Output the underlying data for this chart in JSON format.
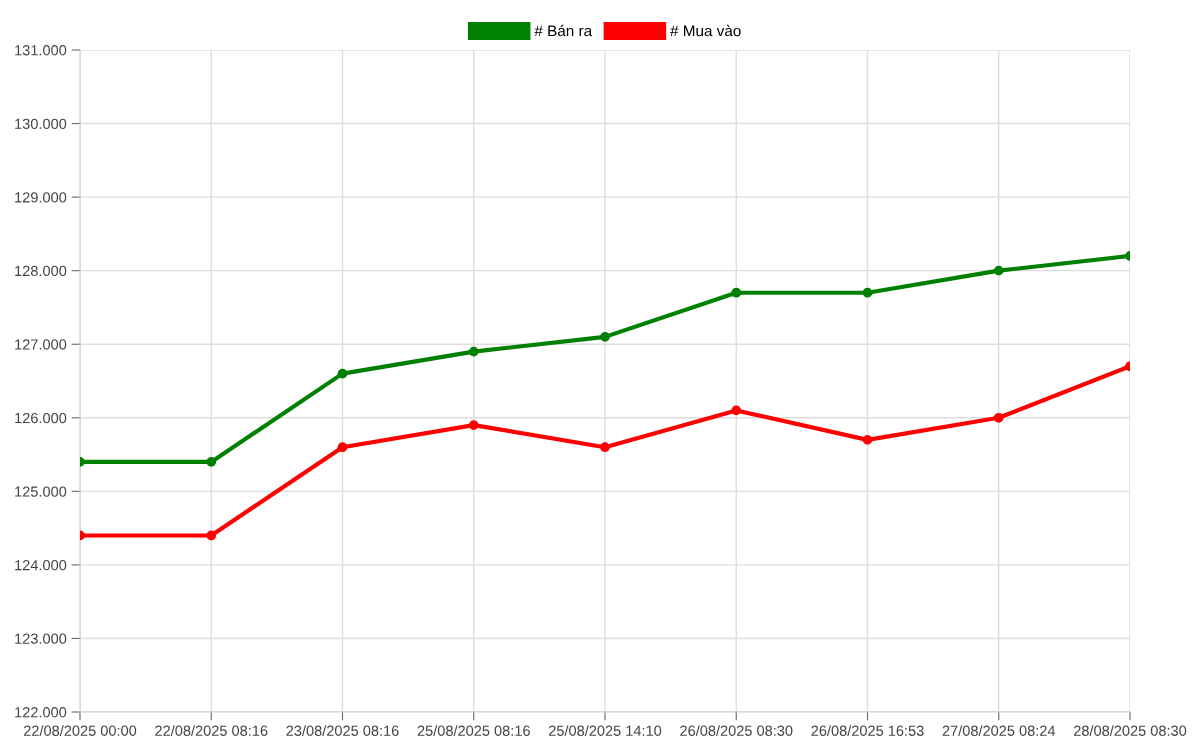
{
  "chart_data": {
    "type": "line",
    "categories": [
      "22/08/2025 00:00",
      "22/08/2025 08:16",
      "23/08/2025 08:16",
      "25/08/2025 08:16",
      "25/08/2025 14:10",
      "26/08/2025 08:30",
      "26/08/2025 16:53",
      "27/08/2025 08:24",
      "28/08/2025 08:30"
    ],
    "series": [
      {
        "name": "# Bán ra",
        "color": "#008000",
        "values": [
          125400,
          125400,
          126600,
          126900,
          127100,
          127700,
          127700,
          128000,
          128200
        ]
      },
      {
        "name": "# Mua vào",
        "color": "#ff0000",
        "values": [
          124400,
          124400,
          125600,
          125900,
          125600,
          126100,
          125700,
          126000,
          126700
        ]
      }
    ],
    "ylim": [
      122000,
      131000
    ],
    "yticks": [
      {
        "value": 122000,
        "label": "122.000"
      },
      {
        "value": 123000,
        "label": "123.000"
      },
      {
        "value": 124000,
        "label": "124.000"
      },
      {
        "value": 125000,
        "label": "125.000"
      },
      {
        "value": 126000,
        "label": "126.000"
      },
      {
        "value": 127000,
        "label": "127.000"
      },
      {
        "value": 128000,
        "label": "128.000"
      },
      {
        "value": 129000,
        "label": "129.000"
      },
      {
        "value": 130000,
        "label": "130.000"
      },
      {
        "value": 131000,
        "label": "131.000"
      }
    ],
    "grid": true,
    "legend": "top",
    "marker": "circle",
    "line_style": "solid"
  }
}
